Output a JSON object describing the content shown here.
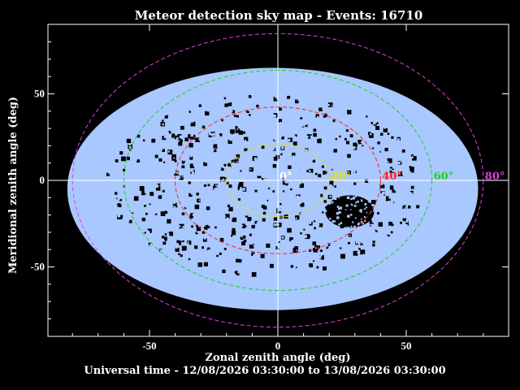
{
  "chart_data": {
    "type": "scatter",
    "title": "Meteor detection sky map - Events: 16710",
    "xlabel": "Zonal zenith angle (deg)",
    "ylabel": "Meridional zenith angle (deg)",
    "footer": "Universal time - 12/08/2026 03:30:00 to 13/08/2026 03:30:00",
    "xlim": [
      -90,
      90
    ],
    "ylim": [
      -60,
      60
    ],
    "x_ticks": [
      -50,
      0,
      50
    ],
    "y_ticks": [
      -50,
      0,
      50
    ],
    "x_tick_labels": [
      "-50",
      "0",
      "50"
    ],
    "y_tick_labels": [
      "-50",
      "0",
      "50"
    ],
    "events_count": 16710,
    "point_color": "#a9c8ff",
    "background": "#000000",
    "axis_color": "#ffffff",
    "zenith_circles": [
      {
        "radius_deg": 0,
        "label": "0°",
        "color": "#ffffff"
      },
      {
        "radius_deg": 20,
        "label": "20°",
        "color": "#e8e800"
      },
      {
        "radius_deg": 40,
        "label": "40°",
        "color": "#ff2020"
      },
      {
        "radius_deg": 60,
        "label": "60°",
        "color": "#20d020"
      },
      {
        "radius_deg": 80,
        "label": "80°",
        "color": "#e040e0"
      }
    ]
  }
}
